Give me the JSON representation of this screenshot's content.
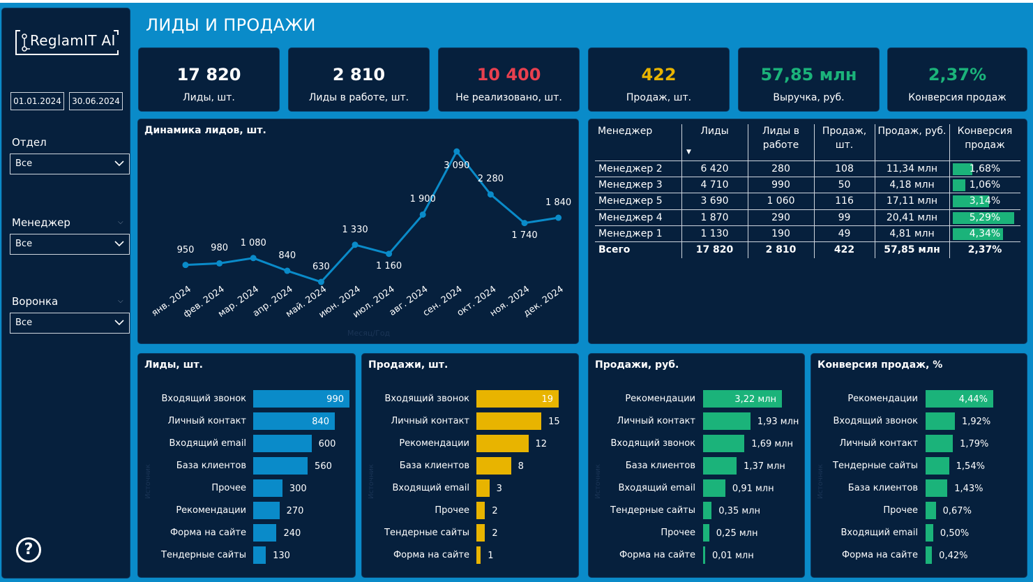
{
  "app": {
    "logo_text": "ReglamIT AI",
    "title": "ЛИДЫ И ПРОДАЖИ"
  },
  "sidebar": {
    "date_from": "01.01.2024",
    "date_to": "30.06.2024",
    "filters": [
      {
        "label": "Отдел",
        "value": "Все"
      },
      {
        "label": "Менеджер",
        "value": "Все"
      },
      {
        "label": "Воронка",
        "value": "Все"
      }
    ],
    "help_icon": "?"
  },
  "kpis": [
    {
      "value": "17 820",
      "label": "Лиды, шт.",
      "color": "#ffffff"
    },
    {
      "value": "2 810",
      "label": "Лиды в работе, шт.",
      "color": "#ffffff"
    },
    {
      "value": "10 400",
      "label": "Не реализовано, шт.",
      "color": "#e8404f"
    },
    {
      "value": "422",
      "label": "Продаж, шт.",
      "color": "#e8b400"
    },
    {
      "value": "57,85 млн",
      "label": "Выручка, руб.",
      "color": "#1bb37a"
    },
    {
      "value": "2,37%",
      "label": "Конверсия продаж",
      "color": "#1bb37a"
    }
  ],
  "line_card": {
    "title": "Динамика лидов, шт.",
    "axis_hint": "Месяц/Год"
  },
  "chart_data": [
    {
      "type": "line",
      "title": "Динамика лидов, шт.",
      "x": [
        "янв. 2024",
        "фев. 2024",
        "мар. 2024",
        "апр. 2024",
        "май. 2024",
        "июн. 2024",
        "июл. 2024",
        "авг. 2024",
        "сен. 2024",
        "окт. 2024",
        "ноя. 2024",
        "дек. 2024"
      ],
      "values": [
        950,
        980,
        1080,
        840,
        630,
        1330,
        1160,
        1900,
        3090,
        2280,
        1740,
        1840
      ],
      "value_labels": [
        "950",
        "980",
        "1 080",
        "840",
        "630",
        "1 330",
        "1 160",
        "1 900",
        "3 090",
        "2 280",
        "1 740",
        "1 840"
      ],
      "color": "#0a8bc9"
    },
    {
      "type": "bar",
      "title": "Лиды, шт.",
      "categories": [
        "Входящий звонок",
        "Личный контакт",
        "Входящий email",
        "База клиентов",
        "Прочее",
        "Рекомендации",
        "Форма на сайте",
        "Тендерные сайты"
      ],
      "values": [
        990,
        840,
        600,
        560,
        300,
        270,
        240,
        130
      ],
      "value_labels": [
        "990",
        "840",
        "600",
        "560",
        "300",
        "270",
        "240",
        "130"
      ],
      "color": "#0a8bc9"
    },
    {
      "type": "bar",
      "title": "Продажи, шт.",
      "categories": [
        "Входящий звонок",
        "Личный контакт",
        "Рекомендации",
        "База клиентов",
        "Входящий email",
        "Прочее",
        "Тендерные сайты",
        "Форма на сайте"
      ],
      "values": [
        19,
        15,
        12,
        8,
        3,
        2,
        2,
        1
      ],
      "value_labels": [
        "19",
        "15",
        "12",
        "8",
        "3",
        "2",
        "2",
        "1"
      ],
      "color": "#e8b400"
    },
    {
      "type": "bar",
      "title": "Продажи, руб.",
      "categories": [
        "Рекомендации",
        "Личный контакт",
        "Входящий звонок",
        "База клиентов",
        "Входящий email",
        "Тендерные сайты",
        "Прочее",
        "Форма на сайте"
      ],
      "values": [
        3.22,
        1.93,
        1.69,
        1.37,
        0.91,
        0.35,
        0.25,
        0.01
      ],
      "value_labels": [
        "3,22 млн",
        "1,93 млн",
        "1,69 млн",
        "1,37 млн",
        "0,91 млн",
        "0,35 млн",
        "0,25 млн",
        "0,01 млн"
      ],
      "color": "#1bb37a"
    },
    {
      "type": "bar",
      "title": "Конверсия продаж, %",
      "categories": [
        "Рекомендации",
        "Входящий звонок",
        "Личный контакт",
        "Тендерные сайты",
        "База клиентов",
        "Прочее",
        "Входящий email",
        "Форма на сайте"
      ],
      "values": [
        4.44,
        1.92,
        1.79,
        1.54,
        1.43,
        0.67,
        0.5,
        0.42
      ],
      "value_labels": [
        "4,44%",
        "1,92%",
        "1,79%",
        "1,54%",
        "1,43%",
        "0,67%",
        "0,50%",
        "0,42%"
      ],
      "color": "#1bb37a"
    }
  ],
  "bar_axis_hint": "Источник",
  "table": {
    "headers": [
      "Менеджер",
      "Лиды",
      "Лиды в\nработе",
      "Продаж,\nшт.",
      "Продаж, руб.",
      "Конверсия\nпродаж"
    ],
    "sort_indicator": "▼",
    "rows": [
      {
        "manager": "Менеджер 2",
        "leads": "6 420",
        "in_work": "280",
        "sales": "108",
        "revenue": "11,34 млн",
        "conv": "1,68%",
        "conv_value": 1.68
      },
      {
        "manager": "Менеджер 3",
        "leads": "4 710",
        "in_work": "990",
        "sales": "50",
        "revenue": "4,18 млн",
        "conv": "1,06%",
        "conv_value": 1.06
      },
      {
        "manager": "Менеджер 5",
        "leads": "3 690",
        "in_work": "1 060",
        "sales": "116",
        "revenue": "17,11 млн",
        "conv": "3,14%",
        "conv_value": 3.14
      },
      {
        "manager": "Менеджер 4",
        "leads": "1 870",
        "in_work": "290",
        "sales": "99",
        "revenue": "20,41 млн",
        "conv": "5,29%",
        "conv_value": 5.29
      },
      {
        "manager": "Менеджер 1",
        "leads": "1 130",
        "in_work": "190",
        "sales": "49",
        "revenue": "4,81 млн",
        "conv": "4,34%",
        "conv_value": 4.34
      }
    ],
    "total": {
      "manager": "Всего",
      "leads": "17 820",
      "in_work": "2 810",
      "sales": "422",
      "revenue": "57,85 млн",
      "conv": "2,37%"
    }
  }
}
